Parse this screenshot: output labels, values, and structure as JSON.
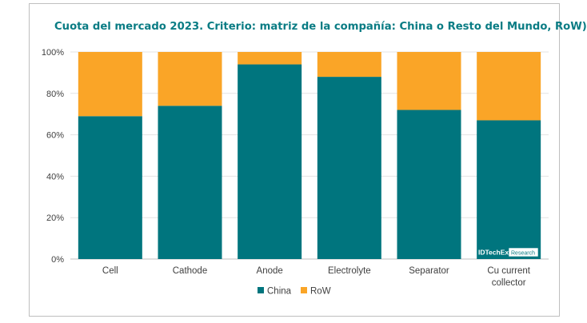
{
  "chart_data": {
    "type": "bar",
    "stacked": true,
    "title": "Cuota del mercado 2023. Criterio: matriz de la compañía: China o Resto del Mundo, RoW)",
    "categories": [
      "Cell",
      "Cathode",
      "Anode",
      "Electrolyte",
      "Separator",
      "Cu current collector"
    ],
    "category_lines": [
      [
        "Cell"
      ],
      [
        "Cathode"
      ],
      [
        "Anode"
      ],
      [
        "Electrolyte"
      ],
      [
        "Separator"
      ],
      [
        "Cu current",
        "collector"
      ]
    ],
    "series": [
      {
        "name": "China",
        "color": "#00757e",
        "values": [
          69,
          74,
          94,
          88,
          72,
          67
        ]
      },
      {
        "name": "RoW",
        "color": "#faa527",
        "values": [
          31,
          26,
          6,
          12,
          28,
          33
        ]
      }
    ],
    "ylim": [
      0,
      100
    ],
    "yticks": [
      "0%",
      "20%",
      "40%",
      "60%",
      "80%",
      "100%"
    ],
    "ytick_values": [
      0,
      20,
      40,
      60,
      80,
      100
    ],
    "grid": true,
    "legend": "bottom-center",
    "watermark": {
      "brand": "IDTechEx",
      "tag": "Research"
    }
  }
}
